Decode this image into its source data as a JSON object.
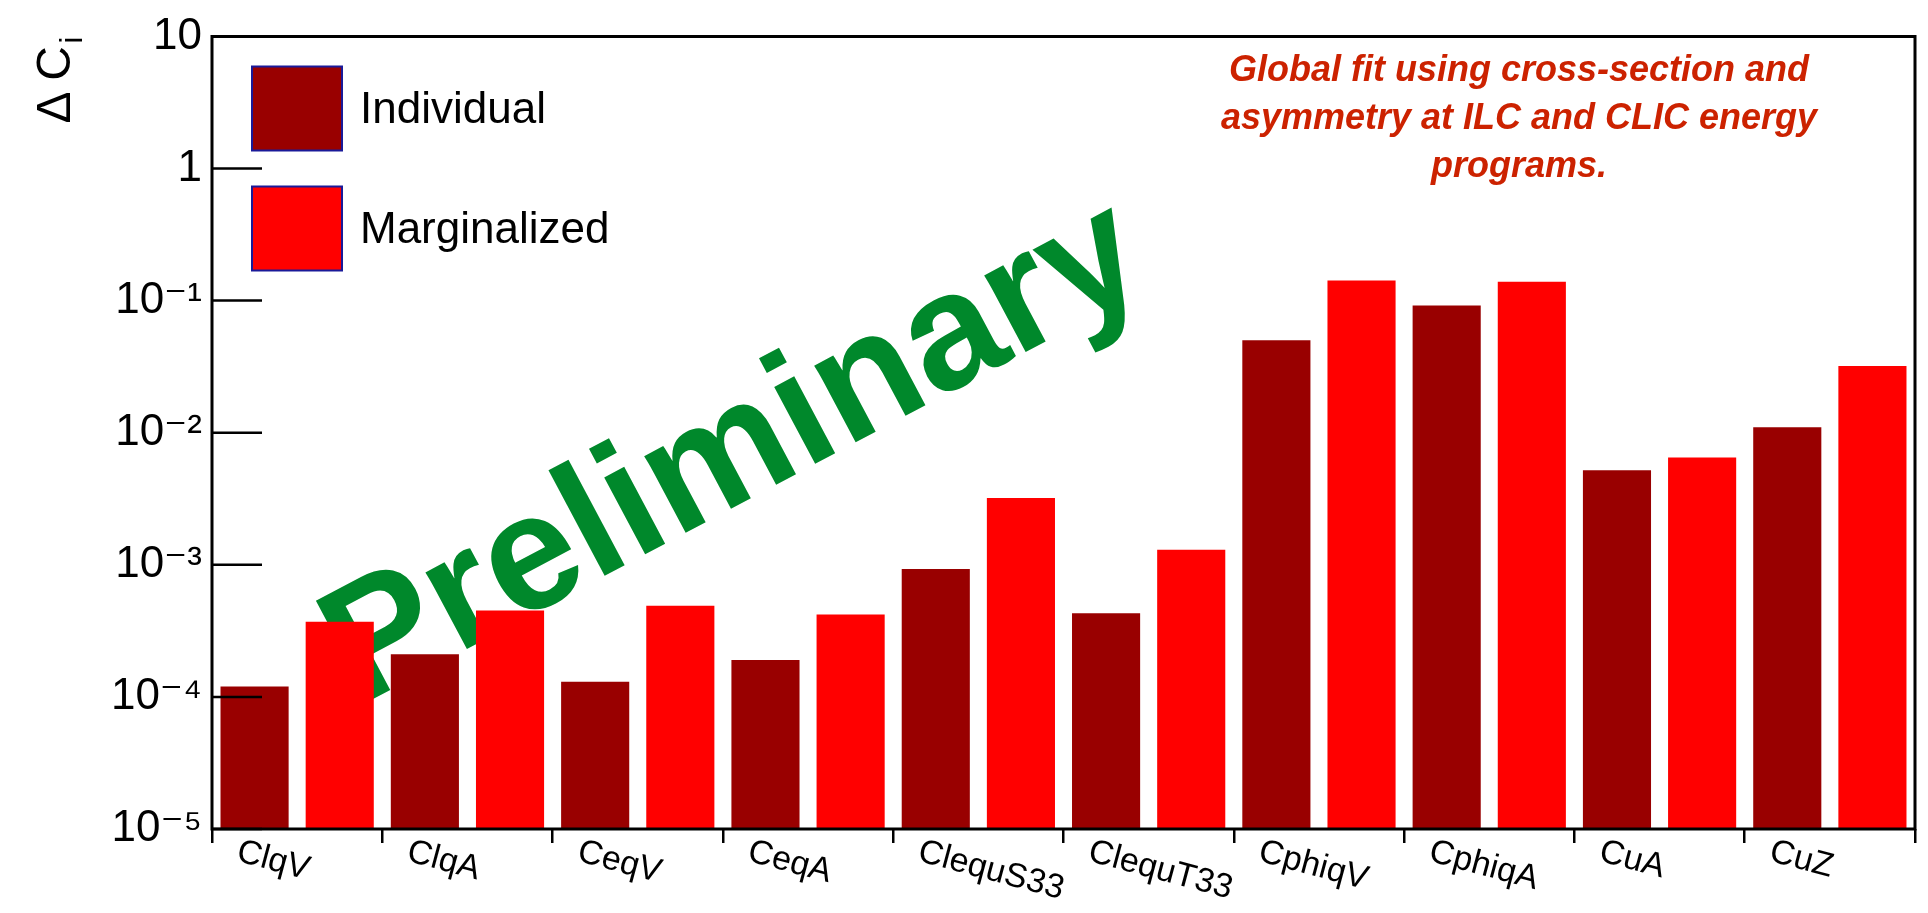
{
  "chart_data": {
    "type": "bar",
    "ylabel": "Δ C$_{i}$",
    "categories": [
      "ClqV",
      "ClqA",
      "CeqV",
      "CeqA",
      "ClequS33",
      "ClequT33",
      "CphiqV",
      "CphiqA",
      "CuA",
      "CuZ"
    ],
    "series": [
      {
        "name": "Individual",
        "color": "#990000",
        "values": [
          0.00012,
          0.00021,
          0.00013,
          0.00019,
          0.00093,
          0.00043,
          0.05,
          0.092,
          0.0052,
          0.011
        ]
      },
      {
        "name": "Marginalized",
        "color": "#ff0000",
        "values": [
          0.00037,
          0.00045,
          0.00049,
          0.00042,
          0.0032,
          0.0013,
          0.142,
          0.139,
          0.0065,
          0.032
        ]
      }
    ],
    "log": true,
    "ylim": [
      1e-05,
      10
    ],
    "yticks": [
      {
        "value": 1e-05,
        "label": "10⁻⁵"
      },
      {
        "value": 0.0001,
        "label": "10⁻⁴"
      },
      {
        "value": 0.001,
        "label": "10⁻³"
      },
      {
        "value": 0.01,
        "label": "10⁻²"
      },
      {
        "value": 0.1,
        "label": "10⁻¹"
      },
      1,
      10
    ],
    "grid": false,
    "legend": "top left",
    "annotations": [
      "Global fit using cross-section and asymmetry at ILC and CLIC energy programs.",
      "Preliminary"
    ]
  }
}
